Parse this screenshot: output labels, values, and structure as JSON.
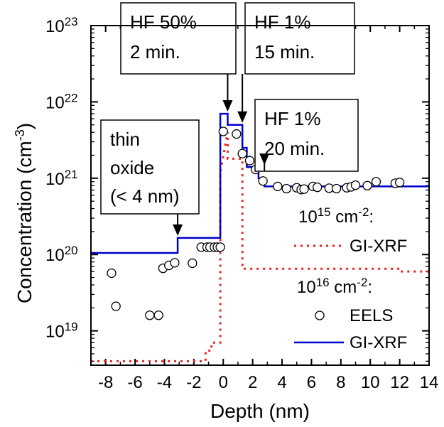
{
  "chart_data": {
    "type": "line",
    "title": "",
    "xlabel": "Depth (nm)",
    "ylabel": "Concentration (cm",
    "ylabel_sup": "-3",
    "ylabel_close": ")",
    "xlim": [
      -9,
      14
    ],
    "ylim_log10": [
      18.55,
      23
    ],
    "y_scale": "log",
    "x_ticks": [
      -8,
      -6,
      -4,
      -2,
      0,
      2,
      4,
      6,
      8,
      10,
      12,
      14
    ],
    "x_tick_labels": [
      "-8",
      "-6",
      "-4",
      "-2",
      "0",
      "2",
      "4",
      "6",
      "8",
      "10",
      "12",
      "14"
    ],
    "y_ticks_exp": [
      19,
      20,
      21,
      22,
      23
    ],
    "y_tick_base": "10",
    "y_tick_sups": [
      "19",
      "20",
      "21",
      "22",
      "23"
    ],
    "colors": {
      "gixrf_1e16": "#0000cc",
      "gixrf_1e15": "#ee2222",
      "eels": "#000000"
    },
    "series": [
      {
        "name": "GI-XRF",
        "group": "1e16",
        "style": "solid",
        "x": [
          -9,
          -3.1,
          -3.1,
          -0.2,
          -0.2,
          0.3,
          0.3,
          1.3,
          1.3,
          1.6,
          1.6,
          2.4,
          2.4,
          2.8,
          2.8,
          14
        ],
        "y": [
          1.05e+20,
          1.05e+20,
          1.65e+20,
          1.65e+20,
          7e+21,
          7e+21,
          5e+21,
          5e+21,
          2.5e+21,
          2.5e+21,
          1.4e+21,
          1.4e+21,
          1e+21,
          1e+21,
          7.8e+20,
          7.8e+20
        ]
      },
      {
        "name": "GI-XRF",
        "group": "1e15",
        "style": "dotted",
        "x": [
          -9,
          -1.2,
          -1.2,
          -0.8,
          -0.8,
          -0.2,
          -0.2,
          0.3,
          0.3,
          1.3,
          1.3,
          12.0,
          12.0,
          14
        ],
        "y": [
          4e+18,
          4e+18,
          5.5e+18,
          5.5e+18,
          7e+18,
          7e+18,
          1.2e+21,
          4e+21,
          1.8e+21,
          1.8e+21,
          6.5e+19,
          6.5e+19,
          6e+19,
          6e+19
        ]
      },
      {
        "name": "EELS",
        "group": "1e16",
        "style": "markers",
        "x": [
          -7.6,
          -7.3,
          -5.0,
          -4.4,
          -4.1,
          -3.7,
          -3.3,
          -2.1,
          -1.5,
          -1.1,
          -0.9,
          -0.6,
          -0.4,
          -0.2,
          0.0,
          0.9,
          1.3,
          1.8,
          2.2,
          2.7,
          3.7,
          4.3,
          5.0,
          5.3,
          5.5,
          6.1,
          6.4,
          7.2,
          7.7,
          8.4,
          8.7,
          9.0,
          9.8,
          10.4,
          11.7,
          12.0
        ],
        "y": [
          5.7e+19,
          2.1e+19,
          1.6e+19,
          1.6e+19,
          6.6e+19,
          7.2e+19,
          7.8e+19,
          7.7e+19,
          1.25e+20,
          1.25e+20,
          1.25e+20,
          1.25e+20,
          1.25e+20,
          1.25e+20,
          4.1e+21,
          3.8e+21,
          2.1e+21,
          1.7e+21,
          1.3e+21,
          9.2e+20,
          7.8e+20,
          7.3e+20,
          7.5e+20,
          7.1e+20,
          7.2e+20,
          7.8e+20,
          7.6e+20,
          7.4e+20,
          7.3e+20,
          7.5e+20,
          7.7e+20,
          8.1e+20,
          8e+20,
          9e+20,
          8.6e+20,
          8.8e+20
        ]
      }
    ],
    "annotations": [
      {
        "id": "hf50",
        "lines": [
          "HF 50%",
          "2 min."
        ],
        "boxed": true,
        "arrow_x": 0.3,
        "arrow_tip_y": 7e+21
      },
      {
        "id": "hf1-15",
        "lines": [
          "HF 1%",
          "15 min."
        ],
        "boxed": true,
        "arrow_x": 1.3,
        "arrow_tip_y": 5e+21
      },
      {
        "id": "hf1-20",
        "lines": [
          "HF 1%",
          "20 min."
        ],
        "boxed": true,
        "arrow_x": 2.8,
        "arrow_tip_y": 1.4e+21
      },
      {
        "id": "thin-oxide",
        "lines": [
          "thin",
          "oxide",
          "(< 4 nm)"
        ],
        "boxed": true,
        "arrow_x": -3.1,
        "arrow_tip_y": 1.65e+20
      }
    ],
    "legend": {
      "placement": "bottom-right",
      "group_1e15": {
        "base": "10",
        "sup": "15",
        "unit": " cm",
        "unit_sup": "-2",
        "colon": ":"
      },
      "group_1e16": {
        "base": "10",
        "sup": "16",
        "unit": " cm",
        "unit_sup": "-2",
        "colon": ":"
      },
      "entry_gixrf_15": "GI-XRF",
      "entry_eels": "EELS",
      "entry_gixrf_16": "GI-XRF"
    }
  }
}
